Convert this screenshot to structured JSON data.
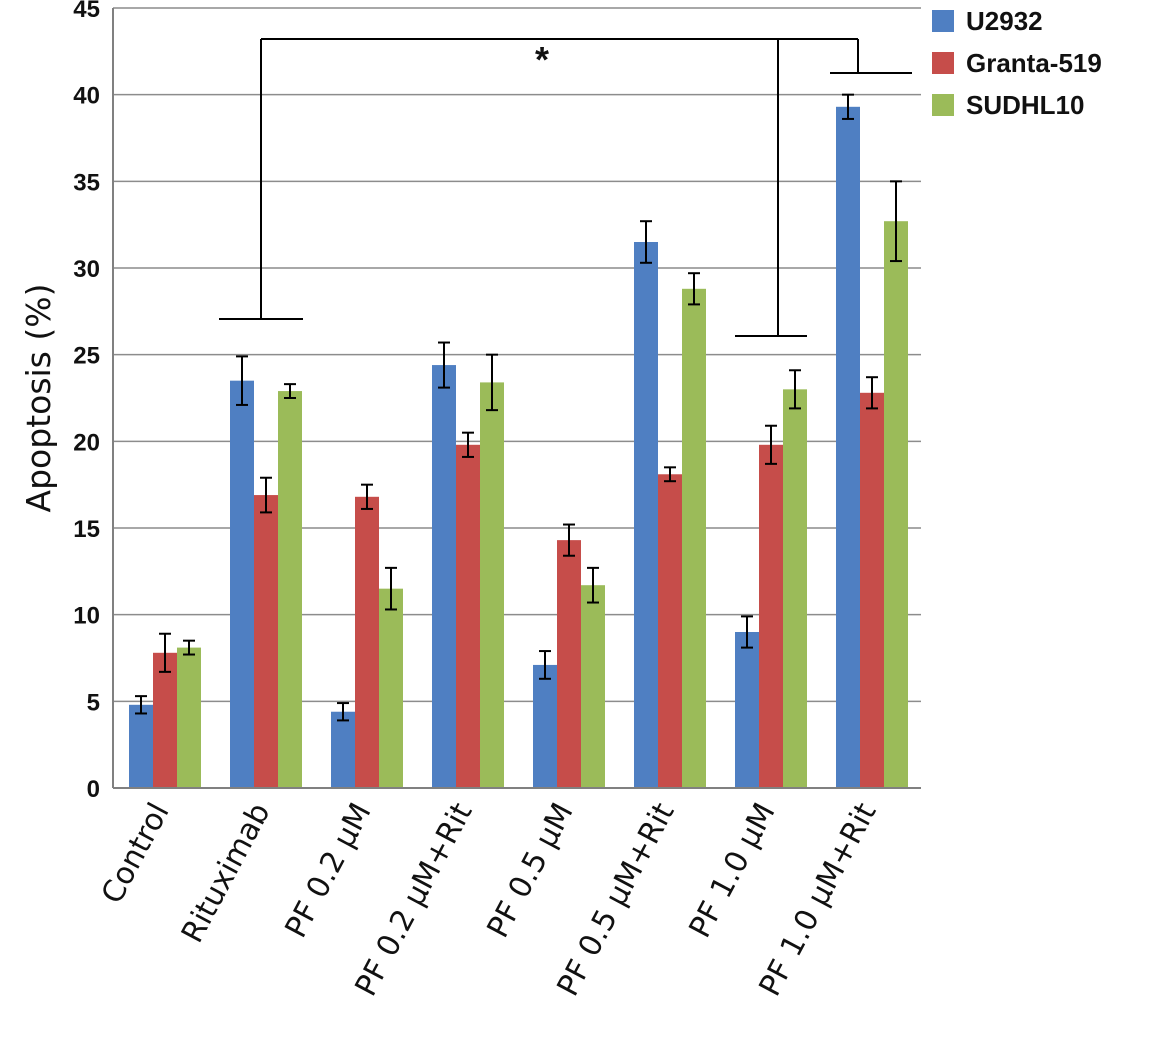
{
  "chart_data": {
    "type": "bar",
    "title": "",
    "xlabel": "",
    "ylabel": "Apoptosis (%)",
    "ylim": [
      0,
      45
    ],
    "yticks": [
      0,
      5,
      10,
      15,
      20,
      25,
      30,
      35,
      40,
      45
    ],
    "grid": true,
    "legend_position": "top-right",
    "categories": [
      "Control",
      "Rituximab",
      "PF 0.2 µM",
      "PF 0.2 µM+Rit",
      "PF 0.5 µM",
      "PF 0.5 µM+Rit",
      "PF 1.0 µM",
      "PF 1.0 µM+Rit"
    ],
    "series": [
      {
        "name": "U2932",
        "color": "#4f7fc2",
        "values": [
          4.8,
          23.5,
          4.4,
          24.4,
          7.1,
          31.5,
          9.0,
          39.3
        ],
        "errors": [
          0.5,
          1.4,
          0.5,
          1.3,
          0.8,
          1.2,
          0.9,
          0.7
        ]
      },
      {
        "name": "Granta-519",
        "color": "#c64d4a",
        "values": [
          7.8,
          16.9,
          16.8,
          19.8,
          14.3,
          18.1,
          19.8,
          22.8
        ],
        "errors": [
          1.1,
          1.0,
          0.7,
          0.7,
          0.9,
          0.4,
          1.1,
          0.9
        ]
      },
      {
        "name": "SUDHL10",
        "color": "#9bbb59",
        "values": [
          8.1,
          22.9,
          11.5,
          23.4,
          11.7,
          28.8,
          23.0,
          32.7
        ],
        "errors": [
          0.4,
          0.4,
          1.2,
          1.6,
          1.0,
          0.9,
          1.1,
          2.3
        ]
      }
    ],
    "annotations": [
      {
        "text": "*",
        "type": "significance-bracket",
        "from": [
          "Rituximab",
          "PF 1.0 µM"
        ],
        "to": "PF 1.0 µM+Rit"
      }
    ]
  }
}
